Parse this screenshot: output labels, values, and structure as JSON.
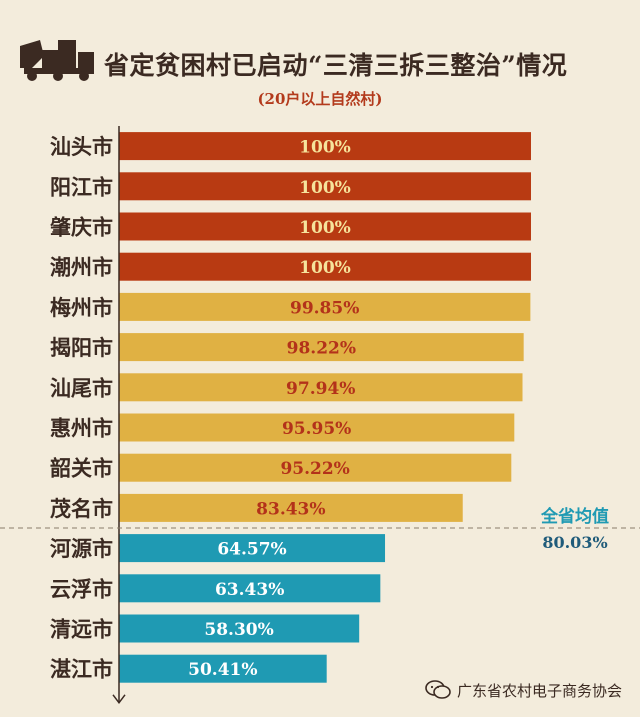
{
  "header": {
    "title": "省定贫困村已启动“三清三拆三整治”情况",
    "subtitle": "(20户以上自然村)"
  },
  "footer": {
    "credit": "广东省农村电子商务协会"
  },
  "chart_data": {
    "type": "bar",
    "orientation": "horizontal",
    "categories": [
      "汕头市",
      "阳江市",
      "肇庆市",
      "潮州市",
      "梅州市",
      "揭阳市",
      "汕尾市",
      "惠州市",
      "韶关市",
      "茂名市",
      "河源市",
      "云浮市",
      "清远市",
      "湛江市"
    ],
    "values": [
      100,
      100,
      100,
      100,
      99.85,
      98.22,
      97.94,
      95.95,
      95.22,
      83.43,
      64.57,
      63.43,
      58.3,
      50.41
    ],
    "value_labels": [
      "100%",
      "100%",
      "100%",
      "100%",
      "99.85%",
      "98.22%",
      "97.94%",
      "95.95%",
      "95.22%",
      "83.43%",
      "64.57%",
      "63.43%",
      "58.30%",
      "50.41%"
    ],
    "bar_colors": [
      "#b83a12",
      "#b83a12",
      "#b83a12",
      "#b83a12",
      "#e0b143",
      "#e0b143",
      "#e0b143",
      "#e0b143",
      "#e0b143",
      "#e0b143",
      "#1f9ab3",
      "#1f9ab3",
      "#1f9ab3",
      "#1f9ab3"
    ],
    "label_colors": [
      "#f6e49c",
      "#f6e49c",
      "#f6e49c",
      "#f6e49c",
      "#b3321a",
      "#b3321a",
      "#b3321a",
      "#b3321a",
      "#b3321a",
      "#b3321a",
      "#ffffff",
      "#ffffff",
      "#ffffff",
      "#ffffff"
    ],
    "xlim": [
      0,
      100
    ],
    "average": {
      "label": "全省均值",
      "value_label": "80.03%",
      "value": 80.03
    },
    "grid": false,
    "legend": "none"
  }
}
